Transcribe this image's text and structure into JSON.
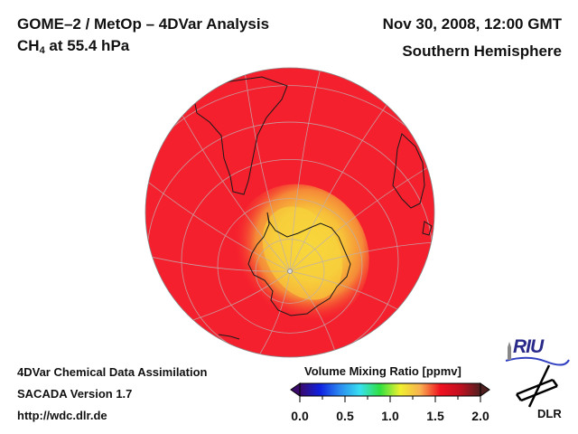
{
  "header": {
    "title": "GOME–2 / MetOp – 4DVar Analysis",
    "species_main": "CH",
    "species_sub": "4",
    "species_rest": " at 55.4 hPa",
    "datetime": "Nov 30, 2008, 12:00 GMT",
    "region": "Southern Hemisphere"
  },
  "footer": {
    "line1": "4DVar Chemical Data Assimilation",
    "line2": "SACADA Version 1.7",
    "line3": "http://wdc.dlr.de"
  },
  "map": {
    "projection": "orthographic",
    "view": "south-pole",
    "field": "CH4 volume mixing ratio",
    "background_value_ppmv": 1.75,
    "max_anomaly_region": "over Antarctica / South Atlantic sector",
    "min_value_ppmv_est": 1.35,
    "colors": {
      "high": "#f5202e",
      "low": "#f7d23a",
      "grid": "#b8b8b8",
      "coast": "#1a1a1a"
    }
  },
  "colorbar": {
    "title": "Volume Mixing Ratio [ppmv]",
    "min": 0.0,
    "max": 2.0,
    "ticks": [
      "0.0",
      "0.5",
      "1.0",
      "1.5",
      "2.0"
    ],
    "extend": "both",
    "stops": [
      "#3a0a6a",
      "#1020e0",
      "#2a8af0",
      "#38e0f0",
      "#30e040",
      "#f0f030",
      "#f8b050",
      "#f01020",
      "#c01020",
      "#502020"
    ]
  },
  "logos": {
    "riu": "RIU",
    "dlr": "DLR"
  }
}
